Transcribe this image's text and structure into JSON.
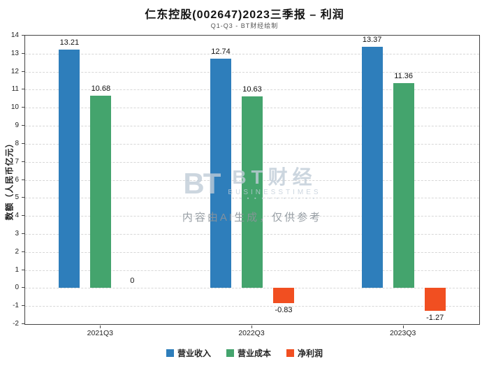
{
  "title": "仁东控股(002647)2023三季报 – 利润",
  "subtitle": "Q1-Q3 - BT财经绘制",
  "watermark": {
    "logo_mark": "BT",
    "logo_main": "BT财经",
    "logo_sub": "BUSINESSTIMES",
    "logo_dots": "▪ ▪ ▪ ▪ ▪ ▪ ▪ ▪ ▪ ▪ ▪ ▪",
    "disclaimer": "内容由AI生成，仅供参考"
  },
  "chart_data": {
    "type": "bar",
    "title": "仁东控股(002647)2023三季报 – 利润",
    "subtitle": "Q1-Q3 - BT财经绘制",
    "categories": [
      "2021Q3",
      "2022Q3",
      "2023Q3"
    ],
    "series": [
      {
        "name": "营业收入",
        "color": "#2e7ebb",
        "values": [
          13.21,
          12.74,
          13.37
        ],
        "labels": [
          "13.21",
          "12.74",
          "13.37"
        ]
      },
      {
        "name": "营业成本",
        "color": "#44a46d",
        "values": [
          10.68,
          10.63,
          11.36
        ],
        "labels": [
          "10.68",
          "10.63",
          "11.36"
        ]
      },
      {
        "name": "净利润",
        "color": "#f14f21",
        "values": [
          0,
          -0.83,
          -1.27
        ],
        "labels": [
          "0",
          "-0.83",
          "-1.27"
        ]
      }
    ],
    "xlabel": "",
    "ylabel": "数额（人民币亿元）",
    "ylim": [
      -2,
      14
    ],
    "ytick_step": 1,
    "grid": true,
    "grid_style": "dashed",
    "legend_position": "bottom"
  }
}
